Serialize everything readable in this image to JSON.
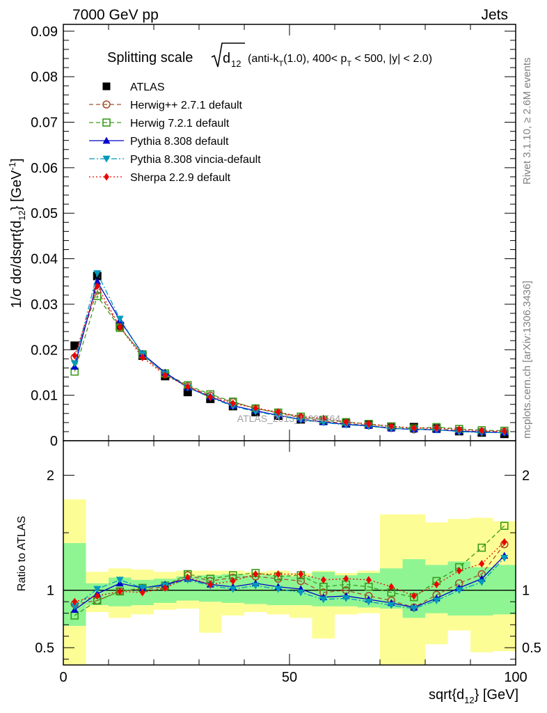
{
  "header": {
    "left": "7000 GeV pp",
    "right": "Jets"
  },
  "side_labels": {
    "rivet": "Rivet 3.1.10, ≥ 2.6M events",
    "mcplots": "mcplots.cern.ch [arXiv:1306.3436]"
  },
  "watermark": "ATLAS_2013_I1094564",
  "title_parts": {
    "main": "Splitting scale",
    "radicand": "d",
    "radicand_sub": "12",
    "cuts_a": "(anti-k",
    "cuts_a_sub": "T",
    "cuts_b": "(1.0), 400< p",
    "cuts_b_sub": "T",
    "cuts_c": " < 500, |y| < 2.0)"
  },
  "axes": {
    "ylabel_main": "1/σ dσ/dsqrt{d",
    "ylabel_sub": "12",
    "ylabel_end": "} [GeV",
    "ylabel_sup": "-1",
    "ylabel_close": "]",
    "ylabel_ratio": "Ratio to ATLAS",
    "xlabel_main": "sqrt{d",
    "xlabel_sub": "12",
    "xlabel_end": "} [GeV]"
  },
  "colors": {
    "atlas": "#000000",
    "herwigpp": "#a0522d",
    "herwig7": "#3a9a1a",
    "pythia": "#0000cc",
    "vincia": "#0099bb",
    "sherpa": "#ee0000",
    "band_inner": "#8ff593",
    "band_outer": "#fdfd96"
  },
  "chart_data": {
    "type": "line",
    "x": [
      2.5,
      7.5,
      12.5,
      17.5,
      22.5,
      27.5,
      32.5,
      37.5,
      42.5,
      47.5,
      52.5,
      57.5,
      62.5,
      67.5,
      72.5,
      77.5,
      82.5,
      87.5,
      92.5,
      97.5
    ],
    "xlim": [
      0,
      100
    ],
    "ylim_main": [
      0,
      0.0915
    ],
    "ylim_ratio": [
      0.35,
      2.3
    ],
    "x_ticks": [
      0,
      50,
      100
    ],
    "y_ticks_main": [
      0,
      0.01,
      0.02,
      0.03,
      0.04,
      0.05,
      0.06,
      0.07,
      0.08,
      0.09
    ],
    "y_tick_labels_main": [
      "0",
      "0.01",
      "0.02",
      "0.03",
      "0.04",
      "0.05",
      "0.06",
      "0.07",
      "0.08",
      "0.09"
    ],
    "y_ticks_ratio": [
      0.5,
      1,
      2
    ],
    "y_tick_labels_ratio": [
      "0.5",
      "1",
      "2"
    ],
    "series": [
      {
        "name": "ATLAS",
        "key": "atlas",
        "marker": "square-filled",
        "line": "none",
        "values": [
          0.0209,
          0.0362,
          0.0252,
          0.0187,
          0.0142,
          0.0107,
          0.0092,
          0.0076,
          0.0063,
          0.0055,
          0.0047,
          0.0044,
          0.0038,
          0.0036,
          0.0031,
          0.003,
          0.0027,
          0.0021,
          0.0018,
          0.0015
        ]
      },
      {
        "name": "Herwig++ 2.7.1 default",
        "key": "herwigpp",
        "marker": "circle-open",
        "line": "dashed",
        "values": [
          0.0183,
          0.033,
          0.025,
          0.0188,
          0.0146,
          0.012,
          0.0099,
          0.0085,
          0.0071,
          0.0061,
          0.0051,
          0.0043,
          0.0038,
          0.0034,
          0.0028,
          0.0025,
          0.0026,
          0.0022,
          0.002,
          0.002
        ]
      },
      {
        "name": "Herwig 7.2.1 default",
        "key": "herwig7",
        "marker": "square-open",
        "line": "dashed",
        "values": [
          0.0152,
          0.0318,
          0.0248,
          0.019,
          0.0148,
          0.0122,
          0.0102,
          0.0086,
          0.0071,
          0.0062,
          0.0053,
          0.0046,
          0.0041,
          0.0037,
          0.0031,
          0.0027,
          0.003,
          0.0026,
          0.0023,
          0.0022
        ]
      },
      {
        "name": "Pythia 8.308 default",
        "key": "pythia",
        "marker": "triangle-up",
        "line": "solid",
        "values": [
          0.0163,
          0.035,
          0.0265,
          0.0191,
          0.015,
          0.0117,
          0.0097,
          0.0077,
          0.0066,
          0.0056,
          0.0047,
          0.0041,
          0.0036,
          0.0033,
          0.0027,
          0.0025,
          0.0024,
          0.0021,
          0.0019,
          0.0018
        ]
      },
      {
        "name": "Pythia 8.308 vincia-default",
        "key": "vincia",
        "marker": "triangle-down",
        "line": "dashdot",
        "values": [
          0.017,
          0.0368,
          0.0268,
          0.019,
          0.0147,
          0.0117,
          0.0095,
          0.0076,
          0.0064,
          0.0055,
          0.0046,
          0.004,
          0.0035,
          0.0032,
          0.0027,
          0.0025,
          0.0024,
          0.002,
          0.0018,
          0.0018
        ]
      },
      {
        "name": "Sherpa 2.2.9 default",
        "key": "sherpa",
        "marker": "diamond",
        "line": "dotted",
        "values": [
          0.0187,
          0.034,
          0.025,
          0.0183,
          0.0144,
          0.0119,
          0.0096,
          0.0082,
          0.0072,
          0.0063,
          0.0053,
          0.0049,
          0.0041,
          0.0037,
          0.0032,
          0.0028,
          0.0028,
          0.0025,
          0.0022,
          0.0021
        ]
      }
    ],
    "ratio": {
      "herwigpp": [
        0.88,
        0.91,
        0.99,
        1.01,
        1.03,
        1.13,
        1.08,
        1.11,
        1.12,
        1.1,
        1.08,
        0.98,
        1.0,
        0.95,
        0.91,
        0.85,
        0.96,
        1.06,
        1.14,
        1.4
      ],
      "herwig7": [
        0.78,
        0.91,
        0.99,
        1.02,
        1.04,
        1.14,
        1.1,
        1.13,
        1.15,
        1.12,
        1.13,
        1.03,
        1.05,
        1.03,
        0.98,
        0.94,
        1.08,
        1.2,
        1.37,
        1.56
      ],
      "pythia": [
        0.83,
        0.97,
        1.06,
        1.02,
        1.05,
        1.1,
        1.05,
        1.03,
        1.06,
        1.03,
        1.01,
        0.94,
        0.95,
        0.92,
        0.89,
        0.85,
        0.93,
        1.02,
        1.1,
        1.3
      ],
      "vincia": [
        0.86,
        1.01,
        1.09,
        1.02,
        1.04,
        1.09,
        1.04,
        1.01,
        1.04,
        1.01,
        0.98,
        0.92,
        0.93,
        0.9,
        0.87,
        0.84,
        0.91,
        1.0,
        1.07,
        1.28
      ],
      "sherpa": [
        0.9,
        0.95,
        0.99,
        0.98,
        1.02,
        1.11,
        1.05,
        1.08,
        1.14,
        1.14,
        1.14,
        1.09,
        1.1,
        1.09,
        1.03,
        0.95,
        1.05,
        1.17,
        1.23,
        1.42
      ]
    },
    "band_inner": [
      [
        0.69,
        1.41
      ],
      [
        0.87,
        1.06
      ],
      [
        0.86,
        1.11
      ],
      [
        0.87,
        1.09
      ],
      [
        0.89,
        1.1
      ],
      [
        0.91,
        1.12
      ],
      [
        0.9,
        1.13
      ],
      [
        0.89,
        1.14
      ],
      [
        0.88,
        1.13
      ],
      [
        0.87,
        1.13
      ],
      [
        0.87,
        1.12
      ],
      [
        0.86,
        1.16
      ],
      [
        0.86,
        1.13
      ],
      [
        0.85,
        1.15
      ],
      [
        0.84,
        1.19
      ],
      [
        0.76,
        1.27
      ],
      [
        0.8,
        1.22
      ],
      [
        0.78,
        1.25
      ],
      [
        0.78,
        1.2
      ],
      [
        0.79,
        1.22
      ]
    ],
    "band_outer": [
      [
        0.35,
        1.79
      ],
      [
        0.81,
        1.16
      ],
      [
        0.76,
        1.19
      ],
      [
        0.79,
        1.18
      ],
      [
        0.83,
        1.16
      ],
      [
        0.84,
        1.17
      ],
      [
        0.63,
        1.17
      ],
      [
        0.78,
        1.17
      ],
      [
        0.81,
        1.16
      ],
      [
        0.79,
        1.17
      ],
      [
        0.76,
        1.15
      ],
      [
        0.58,
        1.17
      ],
      [
        0.79,
        1.15
      ],
      [
        0.8,
        1.17
      ],
      [
        0.35,
        1.66
      ],
      [
        0.35,
        1.66
      ],
      [
        0.53,
        1.59
      ],
      [
        0.65,
        1.62
      ],
      [
        0.46,
        1.63
      ],
      [
        0.47,
        1.6
      ]
    ],
    "legend_position": "top-left"
  }
}
